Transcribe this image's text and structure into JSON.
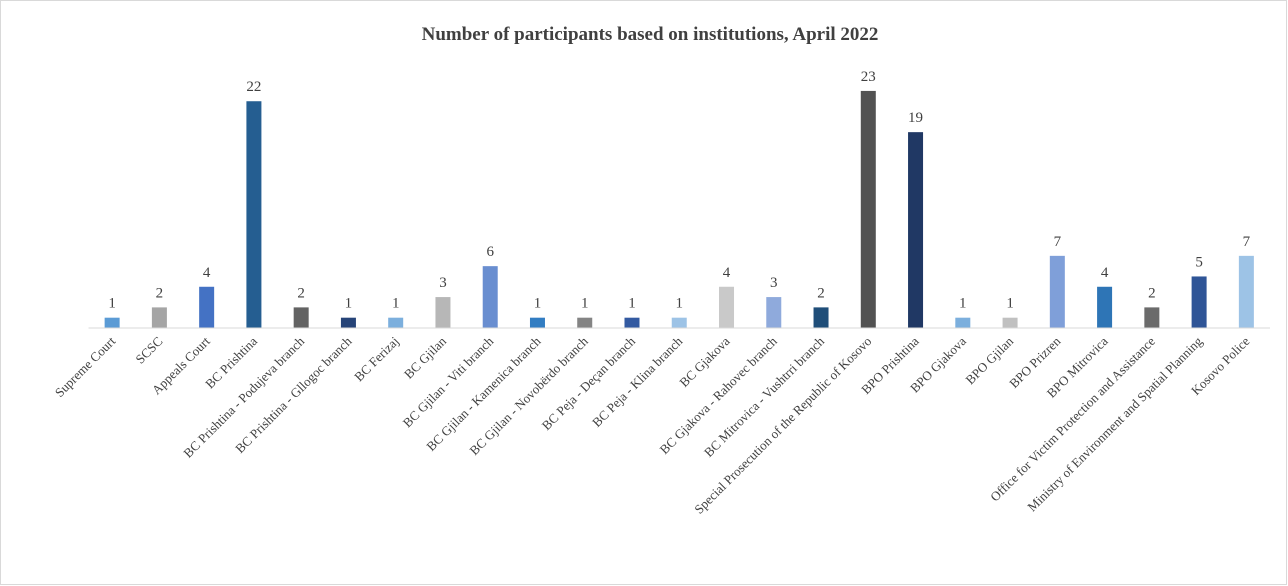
{
  "chart_data": {
    "type": "bar",
    "title": "Number of participants based on institutions, April 2022",
    "categories": [
      "Supreme Court",
      "SCSC",
      "Appeals Court",
      "BC Prishtina",
      "BC Prishtina - Podujeva branch",
      "BC Prishtina - Gllogoc branch",
      "BC Ferizaj",
      "BC Gjilan",
      "BC Gjilan - Viti branch",
      "BC Gjilan - Kamenica branch",
      "BC Gjilan - Novobërdo branch",
      "BC Peja - Deçan branch",
      "BC Peja - Klina branch",
      "BC Gjakova",
      "BC Gjakova - Rahovec branch",
      "BC Mitrovica - Vushtrri branch",
      "Special Prosecution of the Republic of Kosovo",
      "BPO Prishtina",
      "BPO Gjakova",
      "BPO Gjilan",
      "BPO Prizren",
      "BPO Mitrovica",
      "Office for Victim Protection and Assistance",
      "Ministry of Environment and Spatial Planning",
      "Kosovo Police"
    ],
    "values": [
      1,
      2,
      4,
      22,
      2,
      1,
      1,
      3,
      6,
      1,
      1,
      1,
      1,
      4,
      3,
      2,
      23,
      19,
      1,
      1,
      7,
      4,
      2,
      5,
      7
    ],
    "colors": [
      "#5b9bd5",
      "#a5a5a5",
      "#4472c4",
      "#255e91",
      "#636363",
      "#264478",
      "#7cafdd",
      "#b7b7b7",
      "#698ed0",
      "#327dc2",
      "#848484",
      "#335aa1",
      "#9dc3e6",
      "#c9c9c9",
      "#8faadc",
      "#1f4e79",
      "#525252",
      "#203864",
      "#7cafdd",
      "#c0c0c0",
      "#7f9fd9",
      "#2e75b6",
      "#6b6b6b",
      "#2f5597",
      "#9dc3e6"
    ],
    "ylim": [
      0,
      26
    ]
  }
}
